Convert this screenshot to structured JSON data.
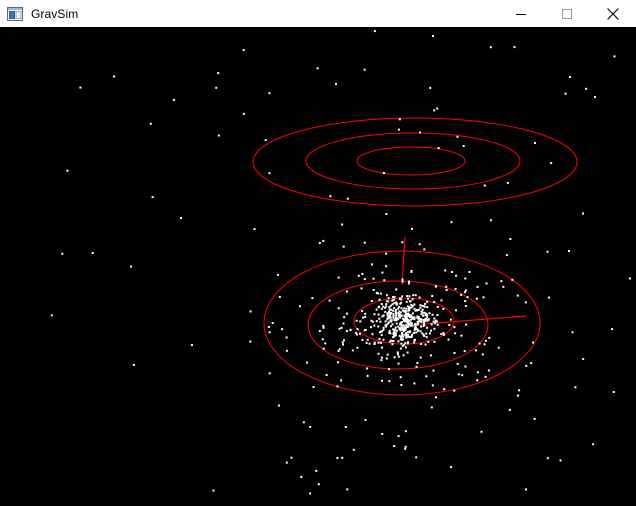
{
  "window": {
    "title": "GravSim",
    "controls": [
      "minimize",
      "maximize",
      "close"
    ]
  },
  "icons": {
    "app": "application-icon",
    "minimize": "minimize-icon",
    "maximize": "maximize-icon",
    "close": "close-icon"
  },
  "colors": {
    "background": "#000000",
    "titlebar": "#ffffff",
    "rings": "#ff0000",
    "particles": "#ffffff"
  }
}
